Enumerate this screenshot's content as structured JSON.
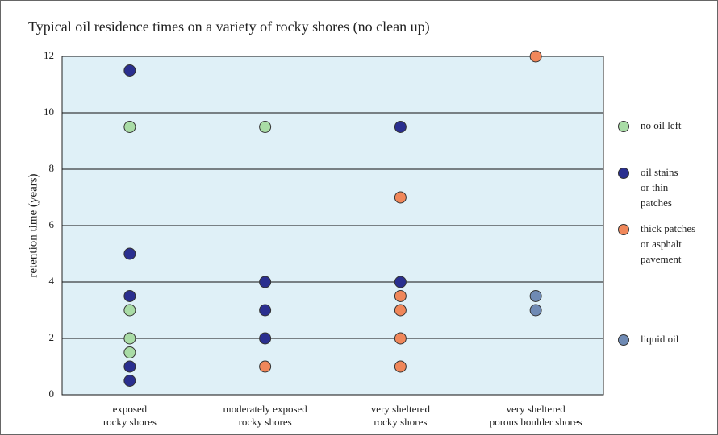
{
  "chart_data": {
    "type": "strip",
    "title": "Typical oil residence times on a variety of rocky shores (no clean up)",
    "y_label": "retention time (years)",
    "categories": [
      [
        "exposed",
        "rocky shores"
      ],
      [
        "moderately exposed",
        "rocky shores"
      ],
      [
        "very sheltered",
        "rocky shores"
      ],
      [
        "very sheltered",
        "porous boulder shores"
      ]
    ],
    "ylim": [
      0,
      12
    ],
    "yticks": [
      0,
      2,
      4,
      6,
      8,
      10,
      12
    ],
    "grid": true,
    "series": [
      {
        "name": [
          "no oil left"
        ],
        "color": "#a9dca6",
        "values": [
          [
            9.5,
            3,
            2,
            1.5
          ],
          [
            9.5
          ],
          [],
          []
        ]
      },
      {
        "name": [
          "oil stains",
          "or thin",
          "patches"
        ],
        "color": "#2a2f8f",
        "values": [
          [
            11.5,
            5,
            3.5,
            1,
            0.5
          ],
          [
            4,
            3,
            2
          ],
          [
            9.5,
            4
          ],
          []
        ]
      },
      {
        "name": [
          "thick patches",
          "or asphalt",
          "pavement"
        ],
        "color": "#f0875a",
        "values": [
          [],
          [
            1
          ],
          [
            7,
            3.5,
            3,
            2,
            1
          ],
          [
            12
          ]
        ]
      },
      {
        "name": [
          "liquid oil"
        ],
        "color": "#6f8ab4",
        "values": [
          [],
          [],
          [],
          [
            3.5,
            3
          ]
        ]
      }
    ]
  }
}
